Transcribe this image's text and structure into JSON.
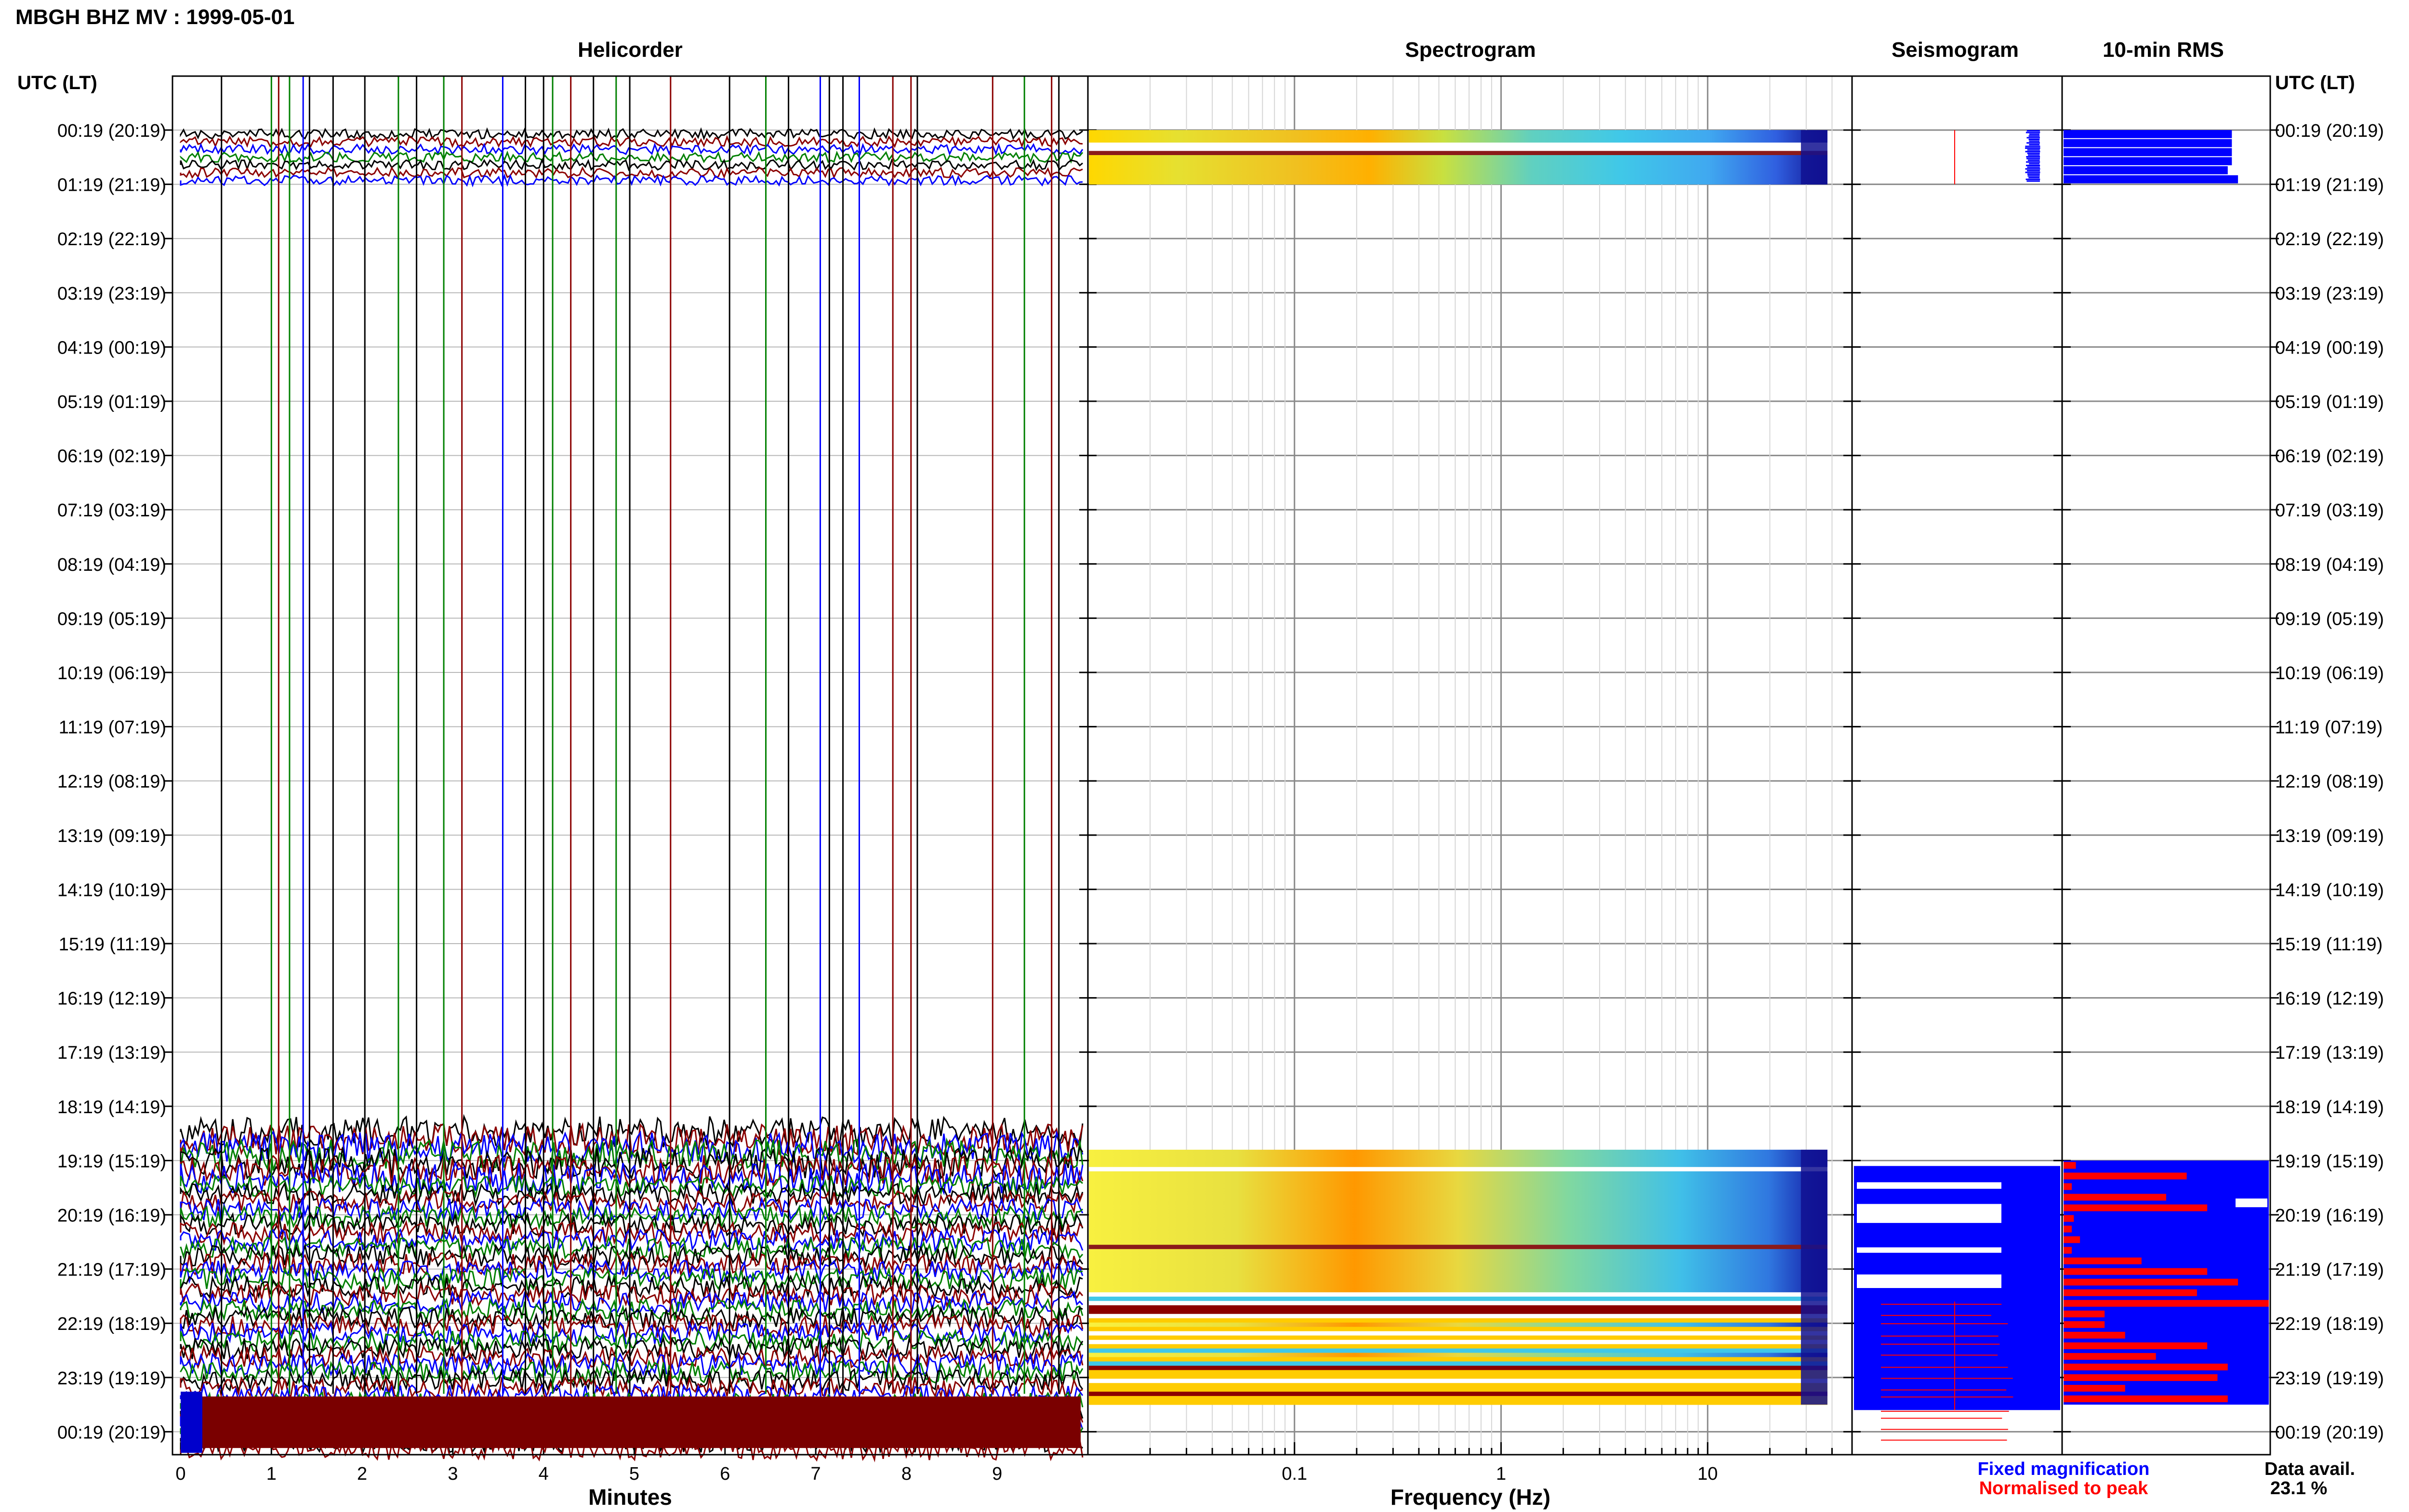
{
  "header": {
    "title": "MBGH BHZ MV : 1999-05-01"
  },
  "panels": {
    "helicorder": "Helicorder",
    "spectrogram": "Spectrogram",
    "seismogram": "Seismogram",
    "rms": "10-min RMS"
  },
  "axis_headers": {
    "left": "UTC (LT)",
    "right": "UTC (LT)"
  },
  "chart_data": {
    "type": "heatmap",
    "time_labels": [
      "00:19 (20:19)",
      "01:19 (21:19)",
      "02:19 (22:19)",
      "03:19 (23:19)",
      "04:19 (00:19)",
      "05:19 (01:19)",
      "06:19 (02:19)",
      "07:19 (03:19)",
      "08:19 (04:19)",
      "09:19 (05:19)",
      "10:19 (06:19)",
      "11:19 (07:19)",
      "12:19 (08:19)",
      "13:19 (09:19)",
      "14:19 (10:19)",
      "15:19 (11:19)",
      "16:19 (12:19)",
      "17:19 (13:19)",
      "18:19 (14:19)",
      "19:19 (15:19)",
      "20:19 (16:19)",
      "21:19 (17:19)",
      "22:19 (18:19)",
      "23:19 (19:19)",
      "00:19 (20:19)"
    ],
    "helicorder": {
      "xlabel": "Minutes",
      "xlim": [
        0,
        10
      ],
      "xticks": [
        0,
        1,
        2,
        3,
        4,
        5,
        6,
        7,
        8,
        9
      ],
      "trace_colors": [
        "#000000",
        "#8b0000",
        "#0000ff",
        "#008000"
      ],
      "data_hours": [
        [
          0,
          1
        ],
        [
          18.4,
          24.4
        ]
      ],
      "event_lines": [
        {
          "min": 0.45,
          "color": "#000000"
        },
        {
          "min": 1.0,
          "color": "#008000"
        },
        {
          "min": 1.08,
          "color": "#8b0000"
        },
        {
          "min": 1.2,
          "color": "#008000"
        },
        {
          "min": 1.35,
          "color": "#0000ff"
        },
        {
          "min": 1.42,
          "color": "#000000"
        },
        {
          "min": 1.68,
          "color": "#000000"
        },
        {
          "min": 2.03,
          "color": "#000000"
        },
        {
          "min": 2.4,
          "color": "#008000"
        },
        {
          "min": 2.6,
          "color": "#000000"
        },
        {
          "min": 2.9,
          "color": "#008000"
        },
        {
          "min": 3.1,
          "color": "#8b0000"
        },
        {
          "min": 3.55,
          "color": "#0000ff"
        },
        {
          "min": 3.8,
          "color": "#000000"
        },
        {
          "min": 4.0,
          "color": "#000000"
        },
        {
          "min": 4.1,
          "color": "#008000"
        },
        {
          "min": 4.3,
          "color": "#8b0000"
        },
        {
          "min": 4.55,
          "color": "#000000"
        },
        {
          "min": 4.8,
          "color": "#008000"
        },
        {
          "min": 4.95,
          "color": "#000000"
        },
        {
          "min": 5.4,
          "color": "#8b0000"
        },
        {
          "min": 6.05,
          "color": "#000000"
        },
        {
          "min": 6.45,
          "color": "#008000"
        },
        {
          "min": 6.7,
          "color": "#000000"
        },
        {
          "min": 7.05,
          "color": "#0000ff"
        },
        {
          "min": 7.15,
          "color": "#000000"
        },
        {
          "min": 7.3,
          "color": "#000000"
        },
        {
          "min": 7.48,
          "color": "#0000ff"
        },
        {
          "min": 7.85,
          "color": "#8b0000"
        },
        {
          "min": 8.05,
          "color": "#8b0000"
        },
        {
          "min": 8.12,
          "color": "#000000"
        },
        {
          "min": 8.95,
          "color": "#8b0000"
        },
        {
          "min": 9.3,
          "color": "#008000"
        },
        {
          "min": 9.6,
          "color": "#8b0000"
        },
        {
          "min": 9.68,
          "color": "#000000"
        }
      ]
    },
    "spectrogram": {
      "xlabel": "Frequency (Hz)",
      "xscale": "log",
      "xlim": [
        0.01,
        50
      ],
      "xtick_labels": [
        "0.1",
        "1",
        "10"
      ],
      "xtick_values": [
        0.1,
        1,
        10
      ],
      "colormap": "jet",
      "data_hours": [
        [
          0,
          1
        ],
        [
          18.8,
          23.5
        ]
      ]
    },
    "seismogram": {
      "colors": [
        "#0000ff",
        "#ff0000"
      ]
    },
    "rms": {
      "colors": [
        "#0000ff",
        "#ff0000"
      ],
      "blue_widths": [
        0.82,
        0.82,
        0.82,
        0.82,
        0.8,
        0.85,
        0.82,
        0.88,
        0.82,
        0.87,
        0.82,
        0.9
      ],
      "red_widths": [
        0.06,
        0.6,
        0.04,
        0.5,
        0.7,
        0.05,
        0.04,
        0.08,
        0.04,
        0.38,
        0.7,
        0.85,
        0.65,
        1.0,
        0.2,
        0.2,
        0.3,
        0.7,
        0.45,
        0.8,
        0.75,
        0.3,
        0.8
      ]
    }
  },
  "legend": {
    "fixed": "Fixed magnification",
    "normalised": "Normalised to peak"
  },
  "availability": {
    "label": "Data avail.",
    "value": "23.1 %"
  }
}
